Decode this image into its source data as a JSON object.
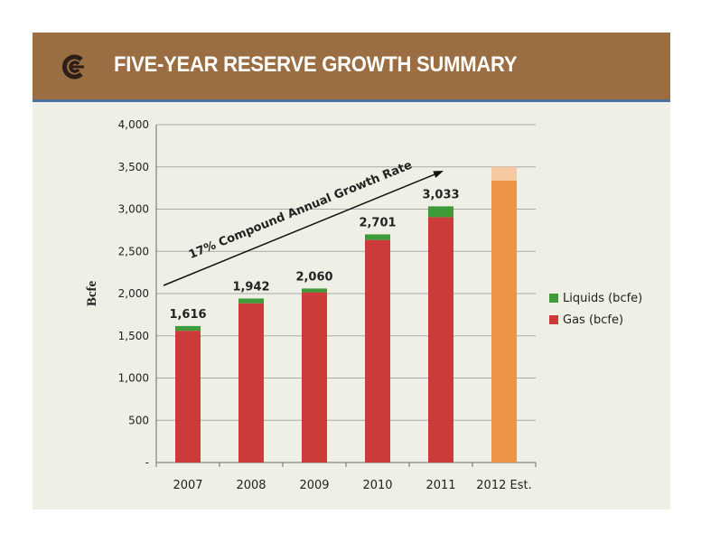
{
  "header": {
    "title": "FIVE-YEAR RESERVE GROWTH SUMMARY"
  },
  "colors": {
    "banner": "#9a6d43",
    "banner_rule": "#4d6f9c",
    "background": "#f0efe6",
    "gas": "#cc3a3a",
    "liquids": "#3f9a3a",
    "estimate": "#ef9447",
    "estimate_light": "#f6c9a2"
  },
  "chart_data": {
    "type": "bar",
    "stacked": true,
    "categories": [
      "2007",
      "2008",
      "2009",
      "2010",
      "2011",
      "2012 Est."
    ],
    "series": [
      {
        "name": "Gas (bcfe)",
        "values": [
          1560,
          1885,
          2015,
          2635,
          2905,
          null
        ],
        "color": "#cc3a3a"
      },
      {
        "name": "Liquids (bcfe)",
        "values": [
          56,
          57,
          45,
          66,
          128,
          null
        ],
        "color": "#3f9a3a"
      }
    ],
    "estimate": {
      "category": "2012 Est.",
      "low": 3340,
      "high": 3500,
      "color": "#ef9447",
      "color_range": "#f6c9a2"
    },
    "totals": [
      "1,616",
      "1,942",
      "2,060",
      "2,701",
      "3,033"
    ],
    "ylabel": "Bcfe",
    "ylim": [
      0,
      4000
    ],
    "yticks": [
      0,
      500,
      1000,
      1500,
      2000,
      2500,
      3000,
      3500,
      4000
    ],
    "ytick_labels": [
      "-",
      "500",
      "1,000",
      "1,500",
      "2,000",
      "2,500",
      "3,000",
      "3,500",
      "4,000"
    ],
    "annotation": "17% Compound Annual Growth Rate",
    "legend": [
      "Liquids (bcfe)",
      "Gas (bcfe)"
    ],
    "legend_position": "right",
    "grid": true
  }
}
